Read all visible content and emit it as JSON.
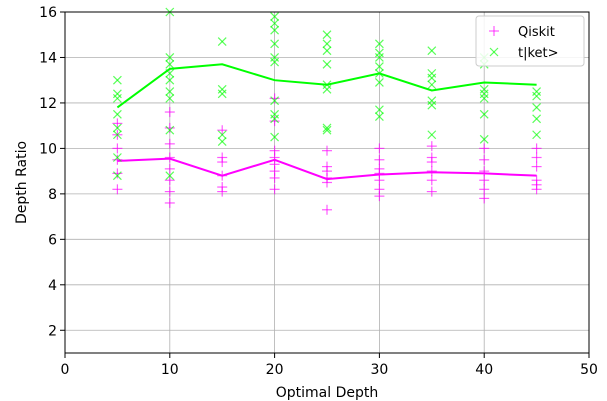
{
  "chart_data": {
    "type": "scatter",
    "title": "",
    "xlabel": "Optimal Depth",
    "ylabel": "Depth Ratio",
    "xlim": [
      0,
      50
    ],
    "ylim": [
      1,
      16
    ],
    "xticks": [
      0,
      10,
      20,
      30,
      40,
      50
    ],
    "yticks": [
      2,
      4,
      6,
      8,
      10,
      12,
      14,
      16
    ],
    "grid": true,
    "legend": {
      "placement": "top-right"
    },
    "series": [
      {
        "name": "Qiskit",
        "color": "#ff00ff",
        "marker": "plus",
        "points": [
          {
            "x": 5,
            "y": 8.2
          },
          {
            "x": 5,
            "y": 8.9
          },
          {
            "x": 5,
            "y": 9.5
          },
          {
            "x": 5,
            "y": 10.0
          },
          {
            "x": 5,
            "y": 10.6
          },
          {
            "x": 5,
            "y": 11.1
          },
          {
            "x": 10,
            "y": 7.6
          },
          {
            "x": 10,
            "y": 8.1
          },
          {
            "x": 10,
            "y": 8.6
          },
          {
            "x": 10,
            "y": 9.1
          },
          {
            "x": 10,
            "y": 9.6
          },
          {
            "x": 10,
            "y": 10.2
          },
          {
            "x": 10,
            "y": 10.9
          },
          {
            "x": 10,
            "y": 11.6
          },
          {
            "x": 15,
            "y": 8.1
          },
          {
            "x": 15,
            "y": 8.3
          },
          {
            "x": 15,
            "y": 8.8
          },
          {
            "x": 15,
            "y": 9.4
          },
          {
            "x": 15,
            "y": 9.6
          },
          {
            "x": 15,
            "y": 10.8
          },
          {
            "x": 20,
            "y": 8.2
          },
          {
            "x": 20,
            "y": 8.7
          },
          {
            "x": 20,
            "y": 9.0
          },
          {
            "x": 20,
            "y": 9.3
          },
          {
            "x": 20,
            "y": 9.6
          },
          {
            "x": 20,
            "y": 9.9
          },
          {
            "x": 20,
            "y": 11.2
          },
          {
            "x": 20,
            "y": 12.2
          },
          {
            "x": 25,
            "y": 7.3
          },
          {
            "x": 25,
            "y": 8.5
          },
          {
            "x": 25,
            "y": 8.7
          },
          {
            "x": 25,
            "y": 9.0
          },
          {
            "x": 25,
            "y": 9.2
          },
          {
            "x": 25,
            "y": 9.9
          },
          {
            "x": 30,
            "y": 7.9
          },
          {
            "x": 30,
            "y": 8.2
          },
          {
            "x": 30,
            "y": 8.6
          },
          {
            "x": 30,
            "y": 8.9
          },
          {
            "x": 30,
            "y": 9.1
          },
          {
            "x": 30,
            "y": 9.5
          },
          {
            "x": 30,
            "y": 10.0
          },
          {
            "x": 35,
            "y": 8.1
          },
          {
            "x": 35,
            "y": 8.6
          },
          {
            "x": 35,
            "y": 9.0
          },
          {
            "x": 35,
            "y": 9.4
          },
          {
            "x": 35,
            "y": 9.6
          },
          {
            "x": 35,
            "y": 10.1
          },
          {
            "x": 40,
            "y": 7.8
          },
          {
            "x": 40,
            "y": 8.2
          },
          {
            "x": 40,
            "y": 8.6
          },
          {
            "x": 40,
            "y": 9.0
          },
          {
            "x": 40,
            "y": 9.5
          },
          {
            "x": 40,
            "y": 10.0
          },
          {
            "x": 45,
            "y": 8.2
          },
          {
            "x": 45,
            "y": 8.4
          },
          {
            "x": 45,
            "y": 8.6
          },
          {
            "x": 45,
            "y": 9.2
          },
          {
            "x": 45,
            "y": 9.6
          },
          {
            "x": 45,
            "y": 10.0
          }
        ],
        "mean_line": {
          "x": [
            5,
            10,
            15,
            20,
            25,
            30,
            35,
            40,
            45
          ],
          "y": [
            9.45,
            9.55,
            8.8,
            9.5,
            8.65,
            8.85,
            8.95,
            8.9,
            8.8
          ]
        }
      },
      {
        "name": "t|ket>",
        "color": "#00ff00",
        "marker": "x",
        "points": [
          {
            "x": 5,
            "y": 8.8
          },
          {
            "x": 5,
            "y": 9.6
          },
          {
            "x": 5,
            "y": 10.6
          },
          {
            "x": 5,
            "y": 10.9
          },
          {
            "x": 5,
            "y": 11.5
          },
          {
            "x": 5,
            "y": 12.2
          },
          {
            "x": 5,
            "y": 12.4
          },
          {
            "x": 5,
            "y": 13.0
          },
          {
            "x": 10,
            "y": 8.8
          },
          {
            "x": 10,
            "y": 10.8
          },
          {
            "x": 10,
            "y": 12.2
          },
          {
            "x": 10,
            "y": 12.5
          },
          {
            "x": 10,
            "y": 13.0
          },
          {
            "x": 10,
            "y": 13.3
          },
          {
            "x": 10,
            "y": 13.7
          },
          {
            "x": 10,
            "y": 14.0
          },
          {
            "x": 10,
            "y": 16.0
          },
          {
            "x": 15,
            "y": 10.3
          },
          {
            "x": 15,
            "y": 10.6
          },
          {
            "x": 15,
            "y": 12.4
          },
          {
            "x": 15,
            "y": 12.6
          },
          {
            "x": 15,
            "y": 14.7
          },
          {
            "x": 20,
            "y": 10.5
          },
          {
            "x": 20,
            "y": 11.3
          },
          {
            "x": 20,
            "y": 11.5
          },
          {
            "x": 20,
            "y": 12.1
          },
          {
            "x": 20,
            "y": 13.8
          },
          {
            "x": 20,
            "y": 14.0
          },
          {
            "x": 20,
            "y": 14.6
          },
          {
            "x": 20,
            "y": 15.2
          },
          {
            "x": 20,
            "y": 15.5
          },
          {
            "x": 20,
            "y": 15.8
          },
          {
            "x": 25,
            "y": 10.8
          },
          {
            "x": 25,
            "y": 10.9
          },
          {
            "x": 25,
            "y": 12.6
          },
          {
            "x": 25,
            "y": 12.8
          },
          {
            "x": 25,
            "y": 13.7
          },
          {
            "x": 25,
            "y": 14.3
          },
          {
            "x": 25,
            "y": 14.6
          },
          {
            "x": 25,
            "y": 15.0
          },
          {
            "x": 30,
            "y": 11.4
          },
          {
            "x": 30,
            "y": 11.7
          },
          {
            "x": 30,
            "y": 12.9
          },
          {
            "x": 30,
            "y": 13.3
          },
          {
            "x": 30,
            "y": 13.6
          },
          {
            "x": 30,
            "y": 14.0
          },
          {
            "x": 30,
            "y": 14.2
          },
          {
            "x": 30,
            "y": 14.6
          },
          {
            "x": 35,
            "y": 10.6
          },
          {
            "x": 35,
            "y": 11.9
          },
          {
            "x": 35,
            "y": 12.1
          },
          {
            "x": 35,
            "y": 12.8
          },
          {
            "x": 35,
            "y": 13.1
          },
          {
            "x": 35,
            "y": 13.3
          },
          {
            "x": 35,
            "y": 14.3
          },
          {
            "x": 40,
            "y": 10.4
          },
          {
            "x": 40,
            "y": 11.5
          },
          {
            "x": 40,
            "y": 12.2
          },
          {
            "x": 40,
            "y": 12.4
          },
          {
            "x": 40,
            "y": 12.6
          },
          {
            "x": 40,
            "y": 13.7
          },
          {
            "x": 40,
            "y": 14.0
          },
          {
            "x": 45,
            "y": 10.6
          },
          {
            "x": 45,
            "y": 11.3
          },
          {
            "x": 45,
            "y": 11.8
          },
          {
            "x": 45,
            "y": 12.3
          },
          {
            "x": 45,
            "y": 12.5
          }
        ],
        "mean_line": {
          "x": [
            5,
            10,
            15,
            20,
            25,
            30,
            35,
            40,
            45
          ],
          "y": [
            11.8,
            13.5,
            13.7,
            13.0,
            12.8,
            13.3,
            12.55,
            12.9,
            12.8
          ]
        }
      }
    ]
  }
}
